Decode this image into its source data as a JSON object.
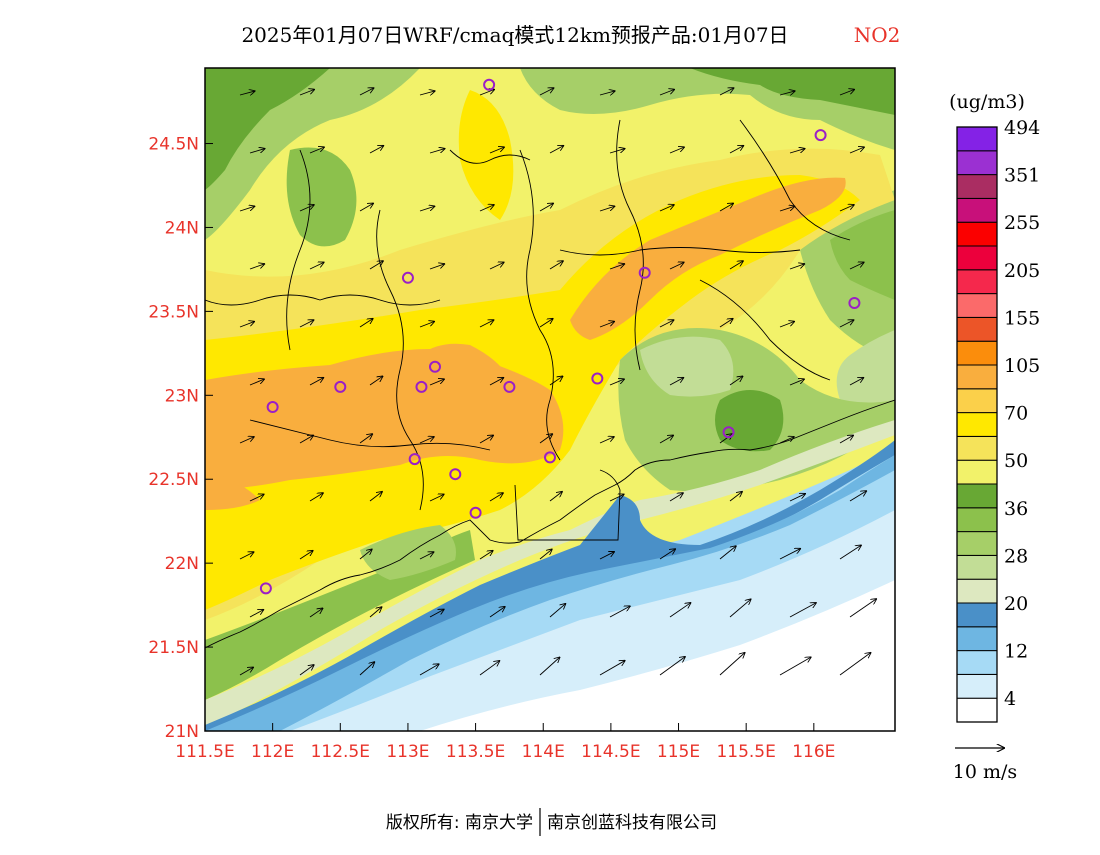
{
  "title": {
    "main": "2025年01月07日WRF/cmaq模式12km预报产品:01月07日",
    "species": "NO2"
  },
  "map": {
    "lon_range": [
      111.5,
      116.6
    ],
    "lat_range": [
      21.0,
      24.95
    ],
    "x_ticks": [
      {
        "value": 111.5,
        "label": "111.5E"
      },
      {
        "value": 112.0,
        "label": "112E"
      },
      {
        "value": 112.5,
        "label": "112.5E"
      },
      {
        "value": 113.0,
        "label": "113E"
      },
      {
        "value": 113.5,
        "label": "113.5E"
      },
      {
        "value": 114.0,
        "label": "114E"
      },
      {
        "value": 114.5,
        "label": "114.5E"
      },
      {
        "value": 115.0,
        "label": "115E"
      },
      {
        "value": 115.5,
        "label": "115.5E"
      },
      {
        "value": 116.0,
        "label": "116E"
      }
    ],
    "y_ticks": [
      {
        "value": 21.0,
        "label": "21N"
      },
      {
        "value": 21.5,
        "label": "21.5N"
      },
      {
        "value": 22.0,
        "label": "22N"
      },
      {
        "value": 22.5,
        "label": "22.5N"
      },
      {
        "value": 23.0,
        "label": "23N"
      },
      {
        "value": 23.5,
        "label": "23.5N"
      },
      {
        "value": 24.0,
        "label": "24N"
      },
      {
        "value": 24.5,
        "label": "24.5N"
      }
    ],
    "sites": [
      [
        113.6,
        24.85
      ],
      [
        116.05,
        24.55
      ],
      [
        113.0,
        23.7
      ],
      [
        114.75,
        23.73
      ],
      [
        116.3,
        23.55
      ],
      [
        113.2,
        23.17
      ],
      [
        112.5,
        23.05
      ],
      [
        113.1,
        23.05
      ],
      [
        113.75,
        23.05
      ],
      [
        114.4,
        23.1
      ],
      [
        112.0,
        22.93
      ],
      [
        115.37,
        22.78
      ],
      [
        113.05,
        22.62
      ],
      [
        113.35,
        22.53
      ],
      [
        114.05,
        22.63
      ],
      [
        113.5,
        22.3
      ],
      [
        111.95,
        21.85
      ]
    ]
  },
  "color_scale": {
    "unit": "(ug/m3)",
    "colors": [
      "#ffffff",
      "#d6eefa",
      "#a6daf5",
      "#6eb6e2",
      "#4a90c8",
      "#dde8c0",
      "#c2dd96",
      "#a6cf68",
      "#8cc14c",
      "#68a834",
      "#f2f26a",
      "#f5e35a",
      "#ffe800",
      "#fbd04a",
      "#f9ae3e",
      "#fb8d0c",
      "#ec5528",
      "#fb6a6a",
      "#f5284c",
      "#ec003c",
      "#fb0000",
      "#c8107a",
      "#aa2d62",
      "#9b30d2",
      "#8422e6"
    ],
    "labels": [
      "4",
      "12",
      "20",
      "28",
      "36",
      "50",
      "70",
      "105",
      "155",
      "205",
      "255",
      "351",
      "494"
    ]
  },
  "wind": {
    "reference_label": "10 m/s"
  },
  "footer": {
    "left": "版权所有: 南京大学",
    "right": "南京创蓝科技有限公司"
  },
  "colors": {
    "axis_label": "#e8332a",
    "site_marker": "#9b1fc6"
  }
}
